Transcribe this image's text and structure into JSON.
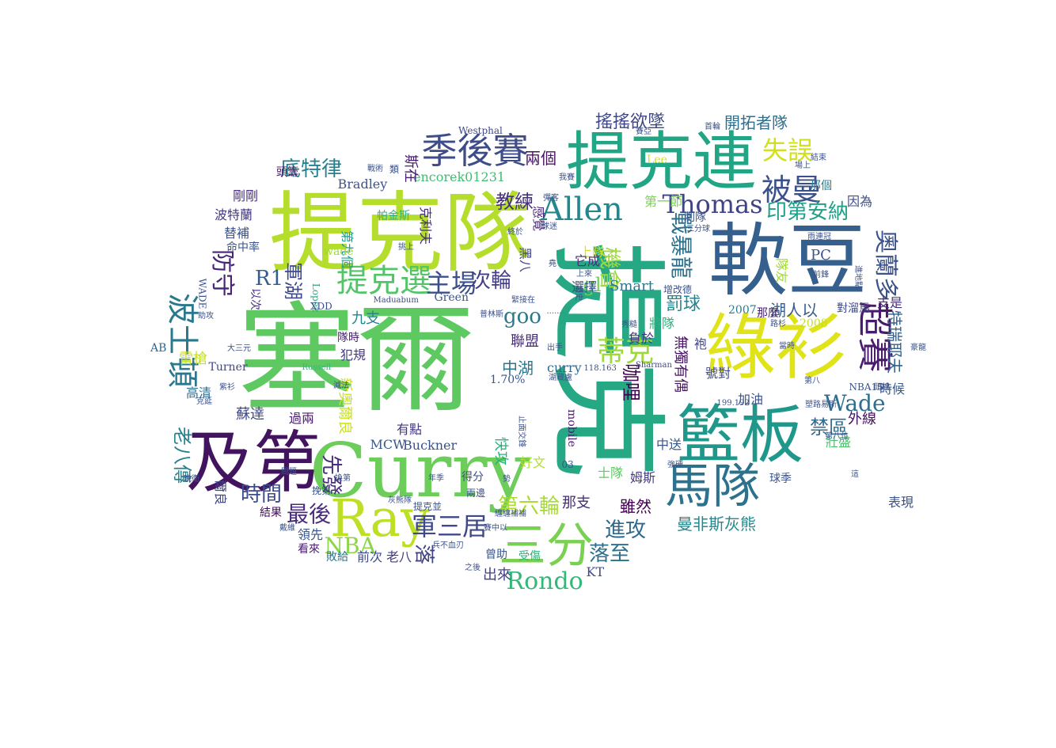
{
  "words": [
    {
      "text": "塞爾",
      "color": "#5fc961"
    },
    {
      "text": "提克",
      "color": "#26a884"
    },
    {
      "text": "提克隊",
      "color": "#b5dd2b"
    },
    {
      "text": "軟豆",
      "color": "#355f8d"
    },
    {
      "text": "提克連",
      "color": "#21a585"
    },
    {
      "text": "綠衫",
      "color": "#e1e319"
    },
    {
      "text": "Curry",
      "color": "#6ccd5a"
    },
    {
      "text": "籃板",
      "color": "#1f988b"
    },
    {
      "text": "及第",
      "color": "#42145f"
    },
    {
      "text": "Ray",
      "color": "#bddf26"
    },
    {
      "text": "馬隊",
      "color": "#2c728e"
    },
    {
      "text": "三分",
      "color": "#7ad151"
    },
    {
      "text": "季後賽",
      "color": "#3e4c8a"
    },
    {
      "text": "Allen",
      "color": "#23888e"
    },
    {
      "text": "Thomas",
      "color": "#404387"
    },
    {
      "text": "被曼",
      "color": "#3b518b"
    },
    {
      "text": "失誤",
      "color": "#d0e11c"
    },
    {
      "text": "提克選",
      "color": "#52c569"
    },
    {
      "text": "主場",
      "color": "#3c4f8a"
    },
    {
      "text": "波士頓",
      "color": "#2a788e"
    },
    {
      "text": "超賽",
      "color": "#481b6d"
    },
    {
      "text": "奧蘭多",
      "color": "#3b528b"
    },
    {
      "text": "印第安納",
      "color": "#1f9f88"
    },
    {
      "text": "防守",
      "color": "#482475"
    },
    {
      "text": "機會",
      "color": "#9fda3a"
    },
    {
      "text": "戰暴龍",
      "color": "#2c718e"
    },
    {
      "text": "蒂克",
      "color": "#9dd93b"
    },
    {
      "text": "Wade",
      "color": "#2e6e8e"
    },
    {
      "text": "Rondo",
      "color": "#35b779"
    },
    {
      "text": "NBA",
      "color": "#8bd646"
    },
    {
      "text": "最後",
      "color": "#472d7b"
    },
    {
      "text": "時間",
      "color": "#3d4d8a"
    },
    {
      "text": "進攻",
      "color": "#31688e"
    },
    {
      "text": "落至",
      "color": "#2d718e"
    },
    {
      "text": "第六輪",
      "color": "#a8db34"
    },
    {
      "text": "軍三居",
      "color": "#3f4889"
    },
    {
      "text": "落",
      "color": "#414487"
    },
    {
      "text": "先發",
      "color": "#472f7d"
    },
    {
      "text": "次輪",
      "color": "#433e85"
    },
    {
      "text": "教練",
      "color": "#46337f"
    },
    {
      "text": "底特律",
      "color": "#27808e"
    },
    {
      "text": "R1",
      "color": "#365c8d"
    },
    {
      "text": "軍湖",
      "color": "#3e4989"
    },
    {
      "text": "goo",
      "color": "#2a788e"
    },
    {
      "text": "gl",
      "color": "#6ece58"
    },
    {
      "text": "咖哩",
      "color": "#440154"
    },
    {
      "text": "禁區",
      "color": "#306a8e"
    },
    {
      "text": "老八傳",
      "color": "#26828e"
    },
    {
      "text": "罰球",
      "color": "#25858e"
    },
    {
      "text": "兩個",
      "color": "#481467"
    },
    {
      "text": "搖搖欲墜",
      "color": "#3f4788"
    },
    {
      "text": "開拓者隊",
      "color": "#2e6f8e"
    },
    {
      "text": "encorek01231",
      "color": "#40bd72"
    },
    {
      "text": "Bradley",
      "color": "#3b528b"
    },
    {
      "text": "斯在",
      "color": "#481a6c"
    },
    {
      "text": "帕金斯",
      "color": "#2eb37c"
    },
    {
      "text": "第九個",
      "color": "#1f9e89"
    },
    {
      "text": "克利夫",
      "color": "#472f7d"
    },
    {
      "text": "wade",
      "color": "#9bd93c"
    },
    {
      "text": "感覺",
      "color": "#482878"
    },
    {
      "text": "上隊",
      "color": "#d8e219"
    },
    {
      "text": "黑八",
      "color": "#414487"
    },
    {
      "text": "它成",
      "color": "#472d7b"
    },
    {
      "text": "選擇",
      "color": "#3b528b"
    },
    {
      "text": "Smart",
      "color": "#2a788e"
    },
    {
      "text": "第一節",
      "color": "#7ad151"
    },
    {
      "text": "PC",
      "color": "#3b528b"
    },
    {
      "text": "隊友",
      "color": "#9fda3a"
    },
    {
      "text": "湖人以",
      "color": "#365d8d"
    },
    {
      "text": "對溜馬",
      "color": "#3e4a89"
    },
    {
      "text": "支是",
      "color": "#472e7c"
    },
    {
      "text": "因為",
      "color": "#3d4d8a"
    },
    {
      "text": "那個",
      "color": "#287d8e"
    },
    {
      "text": "特瑞耶夫",
      "color": "#34618d"
    },
    {
      "text": "2008",
      "color": "#c2df23"
    },
    {
      "text": "時候",
      "color": "#38588c"
    },
    {
      "text": "外線",
      "color": "#471164"
    },
    {
      "text": "壯盛",
      "color": "#4ac16d"
    },
    {
      "text": "表現",
      "color": "#3b528b"
    },
    {
      "text": "曼非斯灰熊",
      "color": "#23898e"
    },
    {
      "text": "雖然",
      "color": "#440154"
    },
    {
      "text": "姆斯",
      "color": "#443a83"
    },
    {
      "text": "士隊",
      "color": "#5ec962"
    },
    {
      "text": "那支",
      "color": "#472d7b"
    },
    {
      "text": "快攻",
      "color": "#2ab07f"
    },
    {
      "text": "好文",
      "color": "#b0dd2f"
    },
    {
      "text": "得分",
      "color": "#3c4f8a"
    },
    {
      "text": "KT",
      "color": "#3e4989"
    },
    {
      "text": "出來",
      "color": "#423f85"
    },
    {
      "text": "受傷",
      "color": "#2db27d"
    },
    {
      "text": "曾助",
      "color": "#39558c"
    },
    {
      "text": "前次",
      "color": "#3e4a89"
    },
    {
      "text": "老八",
      "color": "#433d84"
    },
    {
      "text": "敗給",
      "color": "#29798e"
    },
    {
      "text": "領先",
      "color": "#39568c"
    },
    {
      "text": "看來",
      "color": "#481f70"
    },
    {
      "text": "結果",
      "color": "#460a5d"
    },
    {
      "text": "爾良",
      "color": "#404588"
    },
    {
      "text": "蘇達",
      "color": "#3e4989"
    },
    {
      "text": "過兩",
      "color": "#481c6e"
    },
    {
      "text": "MCW",
      "color": "#38588c"
    },
    {
      "text": "Buckner",
      "color": "#3b518b"
    },
    {
      "text": "有點",
      "color": "#453781"
    },
    {
      "text": "新奧爾良",
      "color": "#cae11f"
    },
    {
      "text": "高清",
      "color": "#2e6e8e"
    },
    {
      "text": "雷槍",
      "color": "#c8e020"
    },
    {
      "text": "Turner",
      "color": "#404588"
    },
    {
      "text": "犯規",
      "color": "#433d84"
    },
    {
      "text": "聯盟",
      "color": "#472c7a"
    },
    {
      "text": "中湖",
      "color": "#2a768e"
    },
    {
      "text": "curry",
      "color": "#30698e"
    },
    {
      "text": "1.70%",
      "color": "#39568c"
    },
    {
      "text": "九支",
      "color": "#26828e"
    },
    {
      "text": "隊時",
      "color": "#482173"
    },
    {
      "text": "替補",
      "color": "#3b528b"
    },
    {
      "text": "命中率",
      "color": "#3a548c"
    },
    {
      "text": "波特蘭",
      "color": "#453882"
    },
    {
      "text": "剛剛",
      "color": "#472e7c"
    },
    {
      "text": "頭籌",
      "color": "#481a6c"
    },
    {
      "text": "以次",
      "color": "#46307e"
    },
    {
      "text": "WADE",
      "color": "#3b528b"
    },
    {
      "text": "AB",
      "color": "#31688e"
    },
    {
      "text": "負於",
      "color": "#46337f"
    },
    {
      "text": "中送",
      "color": "#3a548c"
    },
    {
      "text": "無獨有偶",
      "color": "#481467"
    },
    {
      "text": "袍",
      "color": "#404588"
    },
    {
      "text": "號對",
      "color": "#3f4889"
    },
    {
      "text": "加油",
      "color": "#3b528b"
    },
    {
      "text": "將隊",
      "color": "#2db27d"
    },
    {
      "text": "那麼",
      "color": "#482475"
    },
    {
      "text": "2007",
      "color": "#287d8e"
    },
    {
      "text": "Lee",
      "color": "#d2e21b"
    },
    {
      "text": "Westphal",
      "color": "#3f4889"
    },
    {
      "text": "Lopez",
      "color": "#22a884"
    },
    {
      "text": "Maduabum",
      "color": "#3e4989"
    },
    {
      "text": "Green",
      "color": "#3b528b"
    },
    {
      "text": "XDD",
      "color": "#3e4a89"
    },
    {
      "text": "Russell",
      "color": "#35b779"
    },
    {
      "text": "Sharman",
      "color": "#3f4788"
    },
    {
      "text": "mobile",
      "color": "#481b6d"
    },
    {
      "text": "03",
      "color": "#3b528b"
    },
    {
      "text": "NBA15",
      "color": "#3b528b"
    },
    {
      "text": "199.192",
      "color": "#3b528b"
    },
    {
      "text": "118.163",
      "color": "#3b528b"
    },
    {
      "text": "大三元",
      "color": "#3b528b"
    },
    {
      "text": "助攻",
      "color": "#3b528b"
    },
    {
      "text": "首輪",
      "color": "#3b528b"
    },
    {
      "text": "賽亞",
      "color": "#3b528b"
    },
    {
      "text": "場上",
      "color": "#3b528b"
    },
    {
      "text": "結束",
      "color": "#3b528b"
    },
    {
      "text": "戰術",
      "color": "#3b528b"
    },
    {
      "text": "類",
      "color": "#3b528b"
    },
    {
      "text": "我賽",
      "color": "#3b528b"
    },
    {
      "text": "彈客",
      "color": "#3b528b"
    },
    {
      "text": "刺隊",
      "color": "#3b528b"
    },
    {
      "text": "三分球",
      "color": "#3b528b"
    },
    {
      "text": "雨連冠",
      "color": "#3b528b"
    },
    {
      "text": "前鋒",
      "color": "#3b528b"
    },
    {
      "text": "進地點",
      "color": "#3b528b"
    },
    {
      "text": "挑上",
      "color": "#3b528b"
    },
    {
      "text": "終於",
      "color": "#3b528b"
    },
    {
      "text": "球迷",
      "color": "#3b528b"
    },
    {
      "text": "堯",
      "color": "#3b528b"
    },
    {
      "text": "上來",
      "color": "#3b528b"
    },
    {
      "text": "歷史",
      "color": "#3b528b"
    },
    {
      "text": "緊接在",
      "color": "#3b528b"
    },
    {
      "text": "普林斯",
      "color": "#3b528b"
    },
    {
      "text": "秀糙",
      "color": "#3b528b"
    },
    {
      "text": "路杉",
      "color": "#3b528b"
    },
    {
      "text": "當時",
      "color": "#3b528b"
    },
    {
      "text": "第八",
      "color": "#3b528b"
    },
    {
      "text": "塑路易斯",
      "color": "#3b528b"
    },
    {
      "text": "第八位",
      "color": "#3b528b"
    },
    {
      "text": "強硬",
      "color": "#3b528b"
    },
    {
      "text": "出手",
      "color": "#3b528b"
    },
    {
      "text": "湖藏盧",
      "color": "#3b528b"
    },
    {
      "text": "止面交鋒",
      "color": "#3b528b"
    },
    {
      "text": "換第",
      "color": "#3b528b"
    },
    {
      "text": "年季",
      "color": "#3b528b"
    },
    {
      "text": "兩邊",
      "color": "#3b528b"
    },
    {
      "text": "灰熊隊",
      "color": "#3b528b"
    },
    {
      "text": "纏纏補補",
      "color": "#3b528b"
    },
    {
      "text": "戴維",
      "color": "#3b528b"
    },
    {
      "text": "兵不血刃",
      "color": "#3b528b"
    },
    {
      "text": "之後",
      "color": "#3b528b"
    },
    {
      "text": "提克並",
      "color": "#3b528b"
    },
    {
      "text": "賽中以",
      "color": "#3b528b"
    },
    {
      "text": "問題",
      "color": "#3b528b"
    },
    {
      "text": "挽第",
      "color": "#3b528b"
    },
    {
      "text": "減法",
      "color": "#3b528b"
    },
    {
      "text": "紫衫",
      "color": "#3b528b"
    },
    {
      "text": "克延",
      "color": "#3b528b"
    },
    {
      "text": "......",
      "color": "#3b528b"
    },
    {
      "text": "增改德",
      "color": "#3b528b"
    },
    {
      "text": "頭線",
      "color": "#3b528b"
    },
    {
      "text": "豪龍",
      "color": "#3b528b"
    },
    {
      "text": "這",
      "color": "#3b528b"
    },
    {
      "text": "勢",
      "color": "#3b528b"
    },
    {
      "text": "晚衛",
      "color": "#3b528b"
    },
    {
      "text": "球季",
      "color": "#3b528b"
    }
  ]
}
